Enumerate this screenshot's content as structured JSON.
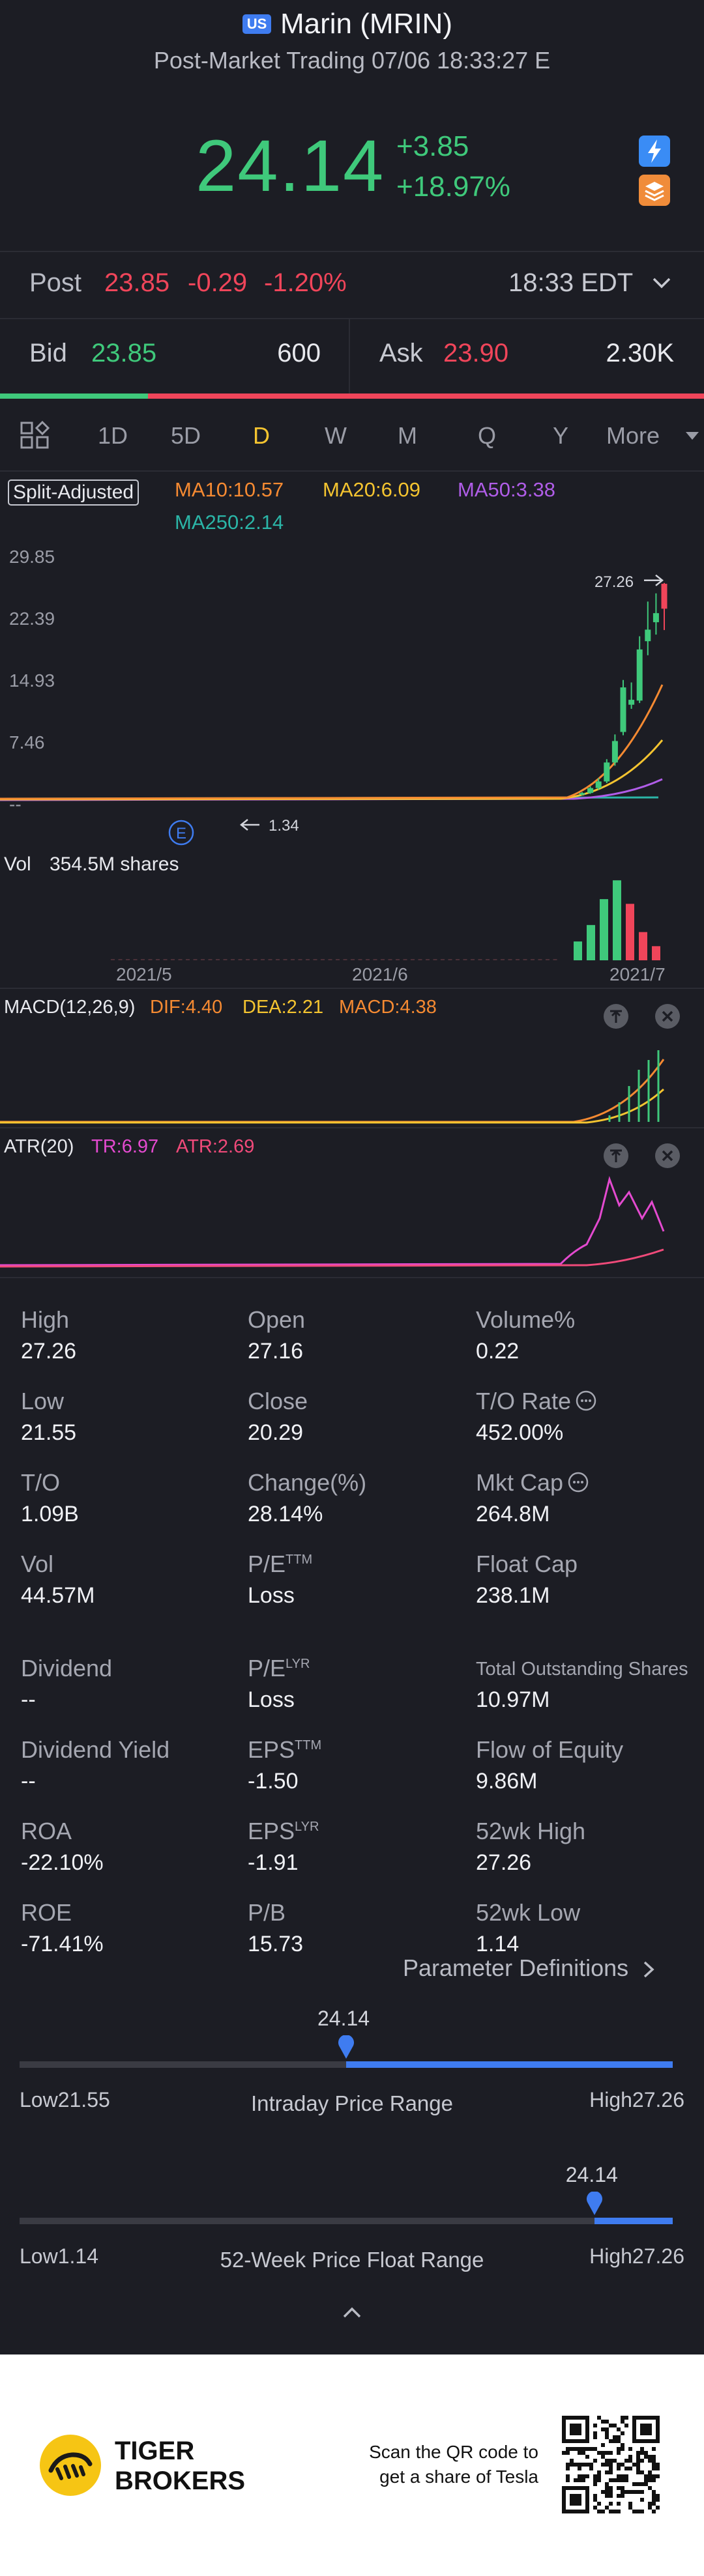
{
  "header": {
    "market_badge": "US",
    "title": "Marin (MRIN)",
    "subtitle": "Post-Market Trading 07/06 18:33:27 E"
  },
  "quote": {
    "price": "24.14",
    "change": "+3.85",
    "change_pct": "+18.97%"
  },
  "post": {
    "label": "Post",
    "price": "23.85",
    "change": "-0.29",
    "change_pct": "-1.20%",
    "time": "18:33 EDT"
  },
  "bidask": {
    "bid_label": "Bid",
    "bid_price": "23.85",
    "bid_size": "600",
    "ask_label": "Ask",
    "ask_price": "23.90",
    "ask_size": "2.30K",
    "bid_ratio": 0.21
  },
  "timeframes": {
    "items": [
      "1D",
      "5D",
      "D",
      "W",
      "M",
      "Q",
      "Y"
    ],
    "active": "D",
    "more": "More"
  },
  "indicators": {
    "split": "Split-Adjusted",
    "ma10": "MA10:10.57",
    "ma20": "MA20:6.09",
    "ma50": "MA50:3.38",
    "ma250": "MA250:2.14"
  },
  "colors": {
    "green": "#3fc97b",
    "red": "#f0455a",
    "ma10": "#f58a32",
    "ma20": "#f4c430",
    "ma50": "#b05de8",
    "ma250": "#2bb5a7",
    "blue": "#3f7cf0"
  },
  "chart_data": [
    {
      "type": "candlestick",
      "y_ticks": [
        "29.85",
        "22.39",
        "14.93",
        "7.46",
        "--"
      ],
      "ylim": [
        0,
        29.85
      ],
      "annotations": {
        "high": "27.26",
        "low": "1.34",
        "event": "E"
      },
      "x_ticks": [
        "2021/5",
        "2021/6",
        "2021/7"
      ],
      "candles": [
        {
          "o": 1.6,
          "h": 1.9,
          "l": 1.5,
          "c": 1.8
        },
        {
          "o": 1.8,
          "h": 2.6,
          "l": 1.7,
          "c": 2.4
        },
        {
          "o": 2.4,
          "h": 3.6,
          "l": 2.2,
          "c": 3.2
        },
        {
          "o": 3.2,
          "h": 5.9,
          "l": 3.0,
          "c": 5.5
        },
        {
          "o": 5.5,
          "h": 8.9,
          "l": 5.1,
          "c": 8.1
        },
        {
          "o": 9.2,
          "h": 15.5,
          "l": 8.8,
          "c": 14.6
        },
        {
          "o": 12.5,
          "h": 15.2,
          "l": 12.0,
          "c": 13.1
        },
        {
          "o": 13.0,
          "h": 20.8,
          "l": 12.7,
          "c": 19.2
        },
        {
          "o": 20.2,
          "h": 25.0,
          "l": 18.5,
          "c": 21.6
        },
        {
          "o": 22.5,
          "h": 26.0,
          "l": 21.0,
          "c": 23.6
        },
        {
          "o": 27.16,
          "h": 27.26,
          "l": 21.55,
          "c": 24.14
        }
      ]
    },
    {
      "type": "bar",
      "title": "Vol",
      "value_label": "354.5M shares",
      "values": [
        40,
        75,
        130,
        170,
        120,
        60,
        30
      ],
      "colors": [
        "g",
        "g",
        "g",
        "g",
        "r",
        "r",
        "r"
      ]
    },
    {
      "type": "line",
      "title": "MACD(12,26,9)",
      "dif": "DIF:4.40",
      "dea": "DEA:2.21",
      "macd": "MACD:4.38"
    },
    {
      "type": "line",
      "title": "ATR(20)",
      "tr": "TR:6.97",
      "atr": "ATR:2.69"
    }
  ],
  "stats": [
    {
      "label": "High",
      "value": "27.26"
    },
    {
      "label": "Open",
      "value": "27.16"
    },
    {
      "label": "Volume%",
      "value": "0.22"
    },
    {
      "label": "Low",
      "value": "21.55"
    },
    {
      "label": "Close",
      "value": "20.29"
    },
    {
      "label": "T/O Rate",
      "value": "452.00%"
    },
    {
      "label": "T/O",
      "value": "1.09B"
    },
    {
      "label": "Change(%)",
      "value": "28.14%"
    },
    {
      "label": "Mkt Cap",
      "value": "264.8M"
    },
    {
      "label": "Vol",
      "value": "44.57M"
    },
    {
      "label": "P/E",
      "sup": "TTM",
      "value": "Loss"
    },
    {
      "label": "Float Cap",
      "value": "238.1M"
    },
    {
      "label": "Dividend",
      "value": "--"
    },
    {
      "label": "P/E",
      "sup": "LYR",
      "value": "Loss"
    },
    {
      "label": "Total Outstanding Shares",
      "value": "10.97M"
    },
    {
      "label": "Dividend Yield",
      "value": "--"
    },
    {
      "label": "EPS",
      "sup": "TTM",
      "value": "-1.50"
    },
    {
      "label": "Flow of Equity",
      "value": "9.86M"
    },
    {
      "label": "ROA",
      "value": "-22.10%"
    },
    {
      "label": "EPS",
      "sup": "LYR",
      "value": "-1.91"
    },
    {
      "label": "52wk High",
      "value": "27.26"
    },
    {
      "label": "ROE",
      "value": "-71.41%"
    },
    {
      "label": "P/B",
      "value": "15.73"
    },
    {
      "label": "52wk Low",
      "value": "1.14"
    }
  ],
  "param_link": "Parameter Definitions",
  "intraday": {
    "value": "24.14",
    "low": "Low21.55",
    "high": "High27.26",
    "label": "Intraday Price Range",
    "fraction": 0.5
  },
  "week52": {
    "value": "24.14",
    "low": "Low1.14",
    "high": "High27.26",
    "label": "52-Week Price Float Range",
    "fraction": 0.88
  },
  "footer": {
    "brand_line1": "TIGER",
    "brand_line2": "BROKERS",
    "promo_line1": "Scan the QR code to",
    "promo_line2": "get a share of Tesla"
  }
}
